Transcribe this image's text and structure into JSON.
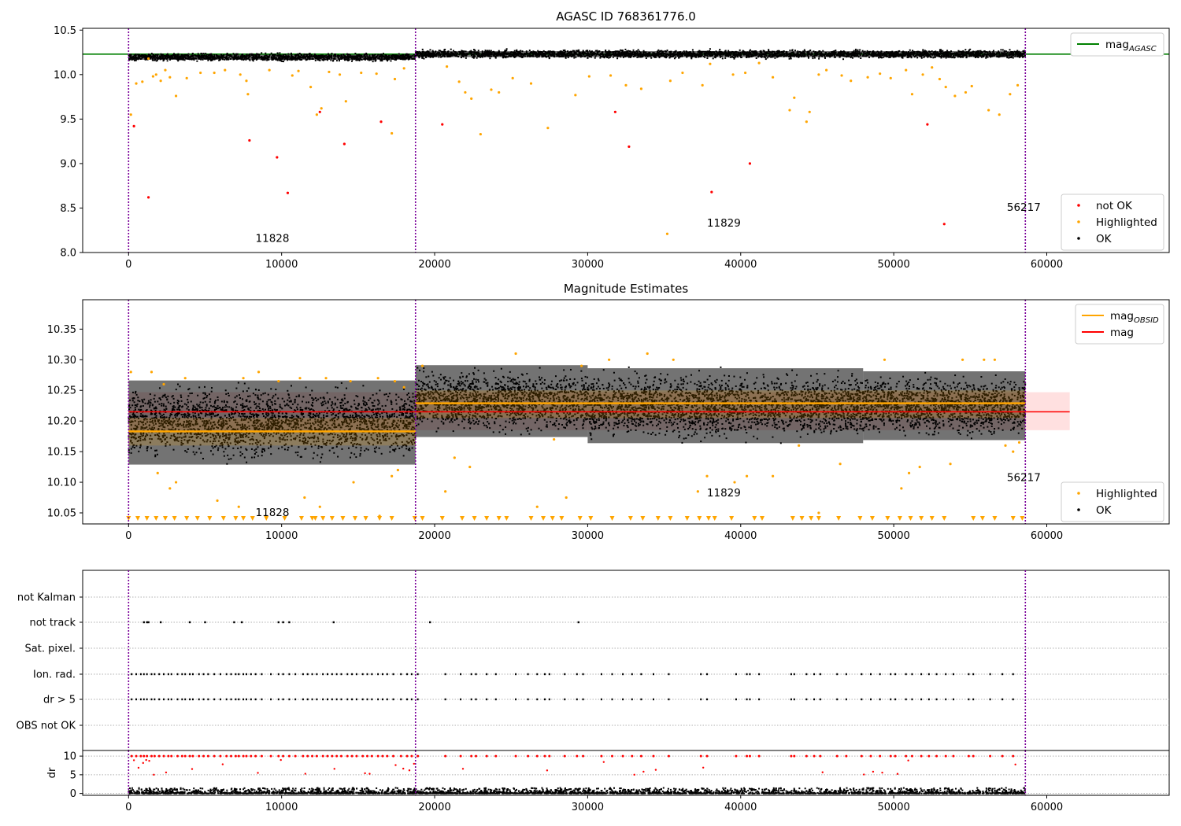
{
  "figure": {
    "title": "AGASC ID 768361776.0"
  },
  "chart_data": [
    {
      "type": "scatter",
      "panel": "agasc-magnitude",
      "title": "AGASC ID 768361776.0",
      "xlim": [
        -3000,
        68000
      ],
      "ylim": [
        8.0,
        10.52
      ],
      "x_ticks": [
        0,
        10000,
        20000,
        30000,
        40000,
        50000,
        60000
      ],
      "y_ticks": [
        "8.0",
        "8.5",
        "9.0",
        "9.5",
        "10.0",
        "10.5"
      ],
      "legend": {
        "placement": "top-right",
        "entries": [
          {
            "label": "mag",
            "subscript": "AGASC",
            "color": "#008000",
            "kind": "line"
          }
        ]
      },
      "legend_lower": {
        "placement": "bottom-right",
        "entries": [
          {
            "label": "not OK",
            "color": "#ff0000",
            "kind": "dot"
          },
          {
            "label": "Highlighted",
            "color": "#ffa500",
            "kind": "dot"
          },
          {
            "label": "OK",
            "color": "#000000",
            "kind": "dot"
          }
        ]
      },
      "reference_line": {
        "name": "mag_AGASC",
        "y": 10.23,
        "color": "#008000"
      },
      "obsid_boundaries": [
        0,
        18750,
        58600
      ],
      "obsid_labels": [
        {
          "text": "11828",
          "x": 9400,
          "y": 8.12
        },
        {
          "text": "11829",
          "x": 38900,
          "y": 8.29
        },
        {
          "text": "56217",
          "x": 58500,
          "y": 8.47
        }
      ],
      "ok_band": [
        {
          "x0": 0,
          "x1": 18750,
          "ylow": 10.14,
          "yhigh": 10.25
        },
        {
          "x0": 18750,
          "x1": 58600,
          "ylow": 10.17,
          "yhigh": 10.29
        }
      ],
      "highlighted_points": [
        [
          150,
          9.55
        ],
        [
          500,
          9.9
        ],
        [
          900,
          9.92
        ],
        [
          1300,
          10.18
        ],
        [
          1600,
          9.98
        ],
        [
          1800,
          10.0
        ],
        [
          2100,
          9.93
        ],
        [
          2400,
          10.05
        ],
        [
          2700,
          9.97
        ],
        [
          3100,
          9.76
        ],
        [
          3800,
          9.96
        ],
        [
          4700,
          10.02
        ],
        [
          5600,
          10.02
        ],
        [
          6300,
          10.05
        ],
        [
          7300,
          10.0
        ],
        [
          7700,
          9.93
        ],
        [
          7800,
          9.78
        ],
        [
          9200,
          10.05
        ],
        [
          10700,
          9.99
        ],
        [
          11100,
          10.04
        ],
        [
          11900,
          9.86
        ],
        [
          12300,
          9.55
        ],
        [
          12600,
          9.62
        ],
        [
          13100,
          10.03
        ],
        [
          13800,
          10.0
        ],
        [
          14200,
          9.7
        ],
        [
          15200,
          10.02
        ],
        [
          16200,
          10.01
        ],
        [
          17200,
          9.34
        ],
        [
          17400,
          9.95
        ],
        [
          18000,
          10.07
        ],
        [
          20800,
          10.09
        ],
        [
          21600,
          9.92
        ],
        [
          22000,
          9.8
        ],
        [
          22400,
          9.73
        ],
        [
          23000,
          9.33
        ],
        [
          23700,
          9.83
        ],
        [
          24200,
          9.8
        ],
        [
          25100,
          9.96
        ],
        [
          26300,
          9.9
        ],
        [
          27400,
          9.4
        ],
        [
          29200,
          9.77
        ],
        [
          30100,
          9.98
        ],
        [
          31500,
          9.99
        ],
        [
          32500,
          9.88
        ],
        [
          33500,
          9.84
        ],
        [
          35400,
          9.93
        ],
        [
          35200,
          8.21
        ],
        [
          36200,
          10.02
        ],
        [
          37500,
          9.88
        ],
        [
          38000,
          10.12
        ],
        [
          39500,
          10.0
        ],
        [
          40300,
          10.02
        ],
        [
          41200,
          10.13
        ],
        [
          42100,
          9.97
        ],
        [
          43200,
          9.6
        ],
        [
          43500,
          9.74
        ],
        [
          44300,
          9.47
        ],
        [
          44500,
          9.58
        ],
        [
          45100,
          10.0
        ],
        [
          45600,
          10.05
        ],
        [
          46600,
          9.99
        ],
        [
          47200,
          9.93
        ],
        [
          48300,
          9.97
        ],
        [
          49100,
          10.01
        ],
        [
          49800,
          9.96
        ],
        [
          50800,
          10.05
        ],
        [
          51200,
          9.78
        ],
        [
          51900,
          10.0
        ],
        [
          52500,
          10.08
        ],
        [
          53000,
          9.95
        ],
        [
          53400,
          9.86
        ],
        [
          54000,
          9.76
        ],
        [
          54700,
          9.8
        ],
        [
          55100,
          9.87
        ],
        [
          56200,
          9.6
        ],
        [
          56900,
          9.55
        ],
        [
          57600,
          9.78
        ],
        [
          58100,
          9.88
        ]
      ],
      "not_ok_points": [
        [
          350,
          9.42
        ],
        [
          1300,
          8.62
        ],
        [
          7900,
          9.26
        ],
        [
          9700,
          9.07
        ],
        [
          10400,
          8.67
        ],
        [
          12500,
          9.58
        ],
        [
          14100,
          9.22
        ],
        [
          16500,
          9.47
        ],
        [
          20500,
          9.44
        ],
        [
          31800,
          9.58
        ],
        [
          32700,
          9.19
        ],
        [
          38100,
          8.68
        ],
        [
          40600,
          9.0
        ],
        [
          52200,
          9.44
        ],
        [
          53300,
          8.32
        ]
      ]
    },
    {
      "type": "scatter",
      "panel": "magnitude-estimates",
      "title": "Magnitude Estimates",
      "xlim": [
        -3000,
        68000
      ],
      "ylim": [
        10.032,
        10.398
      ],
      "x_ticks": [
        0,
        10000,
        20000,
        30000,
        40000,
        50000,
        60000
      ],
      "y_ticks": [
        "10.05",
        "10.10",
        "10.15",
        "10.20",
        "10.25",
        "10.30",
        "10.35"
      ],
      "legend": {
        "placement": "top-right",
        "entries": [
          {
            "label": "mag",
            "subscript": "OBSID",
            "color": "#ffa500",
            "kind": "line"
          },
          {
            "label": "mag",
            "color": "#ff0000",
            "kind": "line"
          }
        ]
      },
      "legend_lower": {
        "placement": "bottom-right",
        "entries": [
          {
            "label": "Highlighted",
            "color": "#ffa500",
            "kind": "dot"
          },
          {
            "label": "OK",
            "color": "#000000",
            "kind": "dot"
          }
        ]
      },
      "mag_line": {
        "y": 10.215,
        "band": [
          10.185,
          10.247
        ],
        "x0": 0,
        "x1": 61500,
        "color": "#ff0000"
      },
      "obsid_mag": [
        {
          "x0": 0,
          "x1": 18750,
          "y": 10.183,
          "sigma_low": 10.16,
          "sigma_high": 10.205
        },
        {
          "x0": 18750,
          "x1": 58600,
          "y": 10.229,
          "sigma_low": 10.205,
          "sigma_high": 10.25
        }
      ],
      "obsid_boundaries": [
        0,
        18750,
        58600
      ],
      "obsid_labels": [
        {
          "text": "11828",
          "x": 9400,
          "y": 10.045
        },
        {
          "text": "11829",
          "x": 38900,
          "y": 10.077
        },
        {
          "text": "56217",
          "x": 58500,
          "y": 10.102
        }
      ],
      "ok_band": [
        {
          "x0": 0,
          "x1": 18750,
          "ylow": 10.125,
          "yhigh": 10.27
        },
        {
          "x0": 18750,
          "x1": 30000,
          "ylow": 10.17,
          "yhigh": 10.295
        },
        {
          "x0": 30000,
          "x1": 48000,
          "ylow": 10.16,
          "yhigh": 10.29
        },
        {
          "x0": 48000,
          "x1": 58600,
          "ylow": 10.165,
          "yhigh": 10.285
        }
      ],
      "highlighted_points": [
        [
          150,
          10.28
        ],
        [
          1500,
          10.28
        ],
        [
          2300,
          10.26
        ],
        [
          3100,
          10.1
        ],
        [
          3700,
          10.27
        ],
        [
          7500,
          10.27
        ],
        [
          8500,
          10.28
        ],
        [
          9800,
          10.265
        ],
        [
          11200,
          10.27
        ],
        [
          12900,
          10.27
        ],
        [
          14500,
          10.265
        ],
        [
          16300,
          10.27
        ],
        [
          17400,
          10.265
        ],
        [
          18000,
          10.255
        ],
        [
          1900,
          10.115
        ],
        [
          2700,
          10.09
        ],
        [
          5800,
          10.07
        ],
        [
          7200,
          10.06
        ],
        [
          11500,
          10.075
        ],
        [
          12500,
          10.06
        ],
        [
          14700,
          10.1
        ],
        [
          16400,
          10.045
        ],
        [
          17200,
          10.11
        ],
        [
          17600,
          10.12
        ],
        [
          19200,
          10.29
        ],
        [
          20700,
          10.085
        ],
        [
          21300,
          10.14
        ],
        [
          22300,
          10.125
        ],
        [
          25300,
          10.31
        ],
        [
          26700,
          10.06
        ],
        [
          27800,
          10.17
        ],
        [
          28600,
          10.075
        ],
        [
          29600,
          10.29
        ],
        [
          31400,
          10.3
        ],
        [
          33900,
          10.31
        ],
        [
          35600,
          10.3
        ],
        [
          37200,
          10.085
        ],
        [
          37800,
          10.11
        ],
        [
          39600,
          10.1
        ],
        [
          40400,
          10.11
        ],
        [
          42100,
          10.11
        ],
        [
          43800,
          10.16
        ],
        [
          45100,
          10.05
        ],
        [
          46500,
          10.13
        ],
        [
          49400,
          10.3
        ],
        [
          50500,
          10.09
        ],
        [
          51000,
          10.115
        ],
        [
          51700,
          10.125
        ],
        [
          53700,
          10.13
        ],
        [
          54500,
          10.3
        ],
        [
          55900,
          10.3
        ],
        [
          56600,
          10.3
        ],
        [
          57300,
          10.16
        ],
        [
          57800,
          10.15
        ],
        [
          58200,
          10.165
        ]
      ],
      "upper_limit_markers": [
        0,
        600,
        1200,
        1800,
        2400,
        3000,
        3800,
        4500,
        5300,
        6200,
        7000,
        7500,
        8100,
        9000,
        10200,
        11300,
        12000,
        12200,
        12700,
        13300,
        14000,
        14800,
        15500,
        16400,
        17200,
        18700,
        19200,
        20500,
        21800,
        22600,
        23400,
        24200,
        24700,
        26300,
        27100,
        27700,
        28300,
        29500,
        30200,
        31600,
        32800,
        33600,
        34600,
        35400,
        36500,
        37300,
        37900,
        38300,
        39400,
        40900,
        41400,
        43400,
        44000,
        44600,
        45100,
        46400,
        47800,
        48600,
        49600,
        50400,
        51100,
        51800,
        52500,
        53300,
        55200,
        55800,
        56600,
        57800,
        58400
      ]
    },
    {
      "type": "scatter",
      "panel": "flags-and-dr",
      "xlim": [
        -3000,
        68000
      ],
      "x_ticks": [
        0,
        10000,
        20000,
        30000,
        40000,
        50000,
        60000
      ],
      "flag_rows": [
        "not Kalman",
        "not track",
        "Sat. pixel.",
        "Ion. rad.",
        "dr > 5",
        "OBS not OK"
      ],
      "dr_ylim": [
        -0.5,
        11.5
      ],
      "dr_ticks": [
        "0",
        "5",
        "10"
      ],
      "dr_ylabel": "dr",
      "obsid_boundaries": [
        0,
        18750,
        58600
      ],
      "not_track_points": [
        1000,
        1200,
        1300,
        2100,
        4000,
        5000,
        6900,
        7400,
        9800,
        10100,
        10500,
        13400,
        19700,
        29400
      ],
      "ion_rad_points": [
        200,
        500,
        800,
        1000,
        1200,
        1500,
        1700,
        2000,
        2300,
        2600,
        2800,
        3200,
        3500,
        3700,
        4000,
        4200,
        4600,
        4900,
        5200,
        5600,
        6000,
        6400,
        6700,
        7000,
        7200,
        7500,
        7700,
        8000,
        8300,
        8700,
        9300,
        9800,
        10100,
        10500,
        10900,
        11400,
        11700,
        12000,
        12300,
        12700,
        13000,
        13300,
        13600,
        13900,
        14300,
        14600,
        14900,
        15300,
        15600,
        15900,
        16300,
        16600,
        16900,
        17300,
        17800,
        18200,
        18500,
        18900,
        20700,
        21700,
        22400,
        22700,
        23400,
        24000,
        25300,
        26100,
        26700,
        27200,
        27500,
        28500,
        29300,
        29700,
        30900,
        31600,
        32300,
        32900,
        33500,
        34300,
        35300,
        37400,
        37800,
        39700,
        40400,
        40600,
        41200,
        43300,
        43500,
        44300,
        44800,
        45200,
        46300,
        46900,
        47900,
        48500,
        49100,
        49800,
        50100,
        50800,
        51200,
        51800,
        52300,
        52800,
        53400,
        53900,
        54900,
        55200,
        56300,
        57100,
        57800
      ]
    }
  ]
}
